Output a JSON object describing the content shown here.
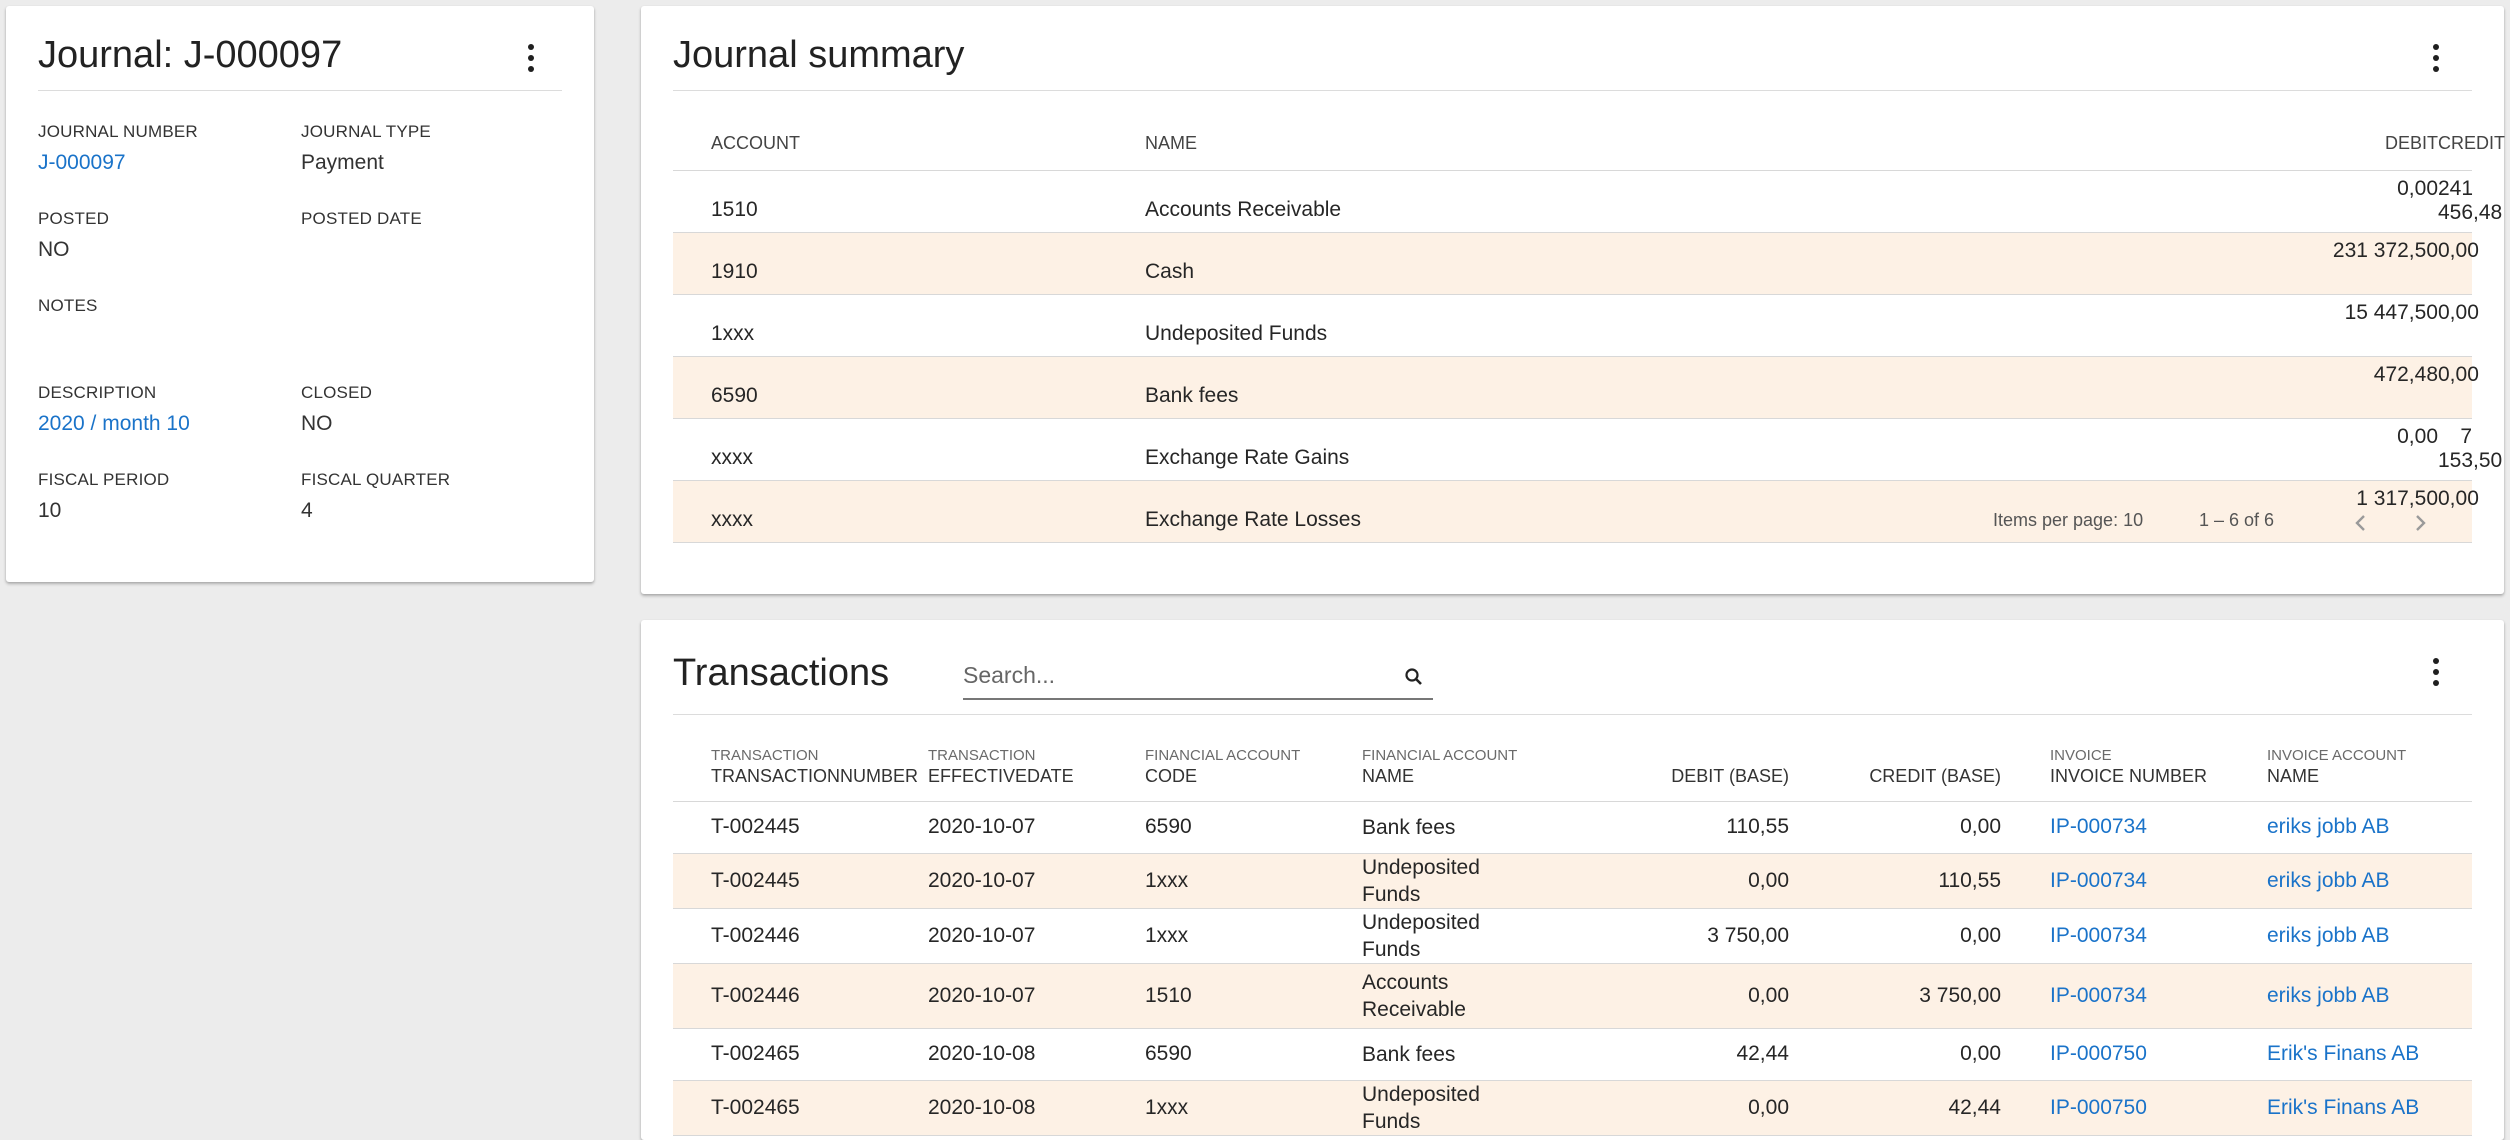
{
  "journal": {
    "title": "Journal: J-000097",
    "fields": {
      "journal_number": {
        "label": "JOURNAL NUMBER",
        "value": "J-000097"
      },
      "journal_type": {
        "label": "JOURNAL TYPE",
        "value": "Payment"
      },
      "posted": {
        "label": "POSTED",
        "value": "NO"
      },
      "posted_date": {
        "label": "POSTED DATE",
        "value": ""
      },
      "notes": {
        "label": "NOTES",
        "value": ""
      },
      "description": {
        "label": "DESCRIPTION",
        "value": "2020 / month 10"
      },
      "closed": {
        "label": "CLOSED",
        "value": "NO"
      },
      "fiscal_period": {
        "label": "FISCAL PERIOD",
        "value": "10"
      },
      "fiscal_quarter": {
        "label": "FISCAL QUARTER",
        "value": "4"
      }
    }
  },
  "summary": {
    "title": "Journal summary",
    "columns": [
      "ACCOUNT",
      "NAME",
      "DEBIT",
      "CREDIT"
    ],
    "rows": [
      {
        "account": "1510",
        "name": "Accounts Receivable",
        "debit": "0,00",
        "credit": "241 456,48"
      },
      {
        "account": "1910",
        "name": "Cash",
        "debit": "231 372,50",
        "credit": "0,00"
      },
      {
        "account": "1xxx",
        "name": "Undeposited Funds",
        "debit": "15 447,50",
        "credit": "0,00"
      },
      {
        "account": "6590",
        "name": "Bank fees",
        "debit": "472,48",
        "credit": "0,00"
      },
      {
        "account": "xxxx",
        "name": "Exchange Rate Gains",
        "debit": "0,00",
        "credit": "7 153,50"
      },
      {
        "account": "xxxx",
        "name": "Exchange Rate Losses",
        "debit": "1 317,50",
        "credit": "0,00"
      }
    ],
    "pager": {
      "items_per_page": "Items per page: 10",
      "range": "1 – 6 of 6"
    }
  },
  "transactions": {
    "title": "Transactions",
    "search_placeholder": "Search...",
    "columns": [
      {
        "sub": "TRANSACTION",
        "main": "TRANSACTIONNUMBER"
      },
      {
        "sub": "TRANSACTION",
        "main": "EFFECTIVEDATE"
      },
      {
        "sub": "FINANCIAL ACCOUNT",
        "main": "CODE"
      },
      {
        "sub": "FINANCIAL ACCOUNT",
        "main": "NAME"
      },
      {
        "sub": "",
        "main": "DEBIT (BASE)"
      },
      {
        "sub": "",
        "main": "CREDIT (BASE)"
      },
      {
        "sub": "INVOICE",
        "main": "INVOICE NUMBER"
      },
      {
        "sub": "INVOICE ACCOUNT",
        "main": "NAME"
      }
    ],
    "rows": [
      {
        "number": "T-002445",
        "date": "2020-10-07",
        "code": "6590",
        "name": "Bank fees",
        "debit": "110,55",
        "credit": "0,00",
        "invoice": "IP-000734",
        "account": "eriks jobb AB"
      },
      {
        "number": "T-002445",
        "date": "2020-10-07",
        "code": "1xxx",
        "name": "Undeposited Funds",
        "debit": "0,00",
        "credit": "110,55",
        "invoice": "IP-000734",
        "account": "eriks jobb AB"
      },
      {
        "number": "T-002446",
        "date": "2020-10-07",
        "code": "1xxx",
        "name": "Undeposited Funds",
        "debit": "3 750,00",
        "credit": "0,00",
        "invoice": "IP-000734",
        "account": "eriks jobb AB"
      },
      {
        "number": "T-002446",
        "date": "2020-10-07",
        "code": "1510",
        "name": "Accounts Receivable",
        "debit": "0,00",
        "credit": "3 750,00",
        "invoice": "IP-000734",
        "account": "eriks jobb AB"
      },
      {
        "number": "T-002465",
        "date": "2020-10-08",
        "code": "6590",
        "name": "Bank fees",
        "debit": "42,44",
        "credit": "0,00",
        "invoice": "IP-000750",
        "account": "Erik's Finans AB"
      },
      {
        "number": "T-002465",
        "date": "2020-10-08",
        "code": "1xxx",
        "name": "Undeposited Funds",
        "debit": "0,00",
        "credit": "42,44",
        "invoice": "IP-000750",
        "account": "Erik's Finans AB"
      }
    ]
  }
}
